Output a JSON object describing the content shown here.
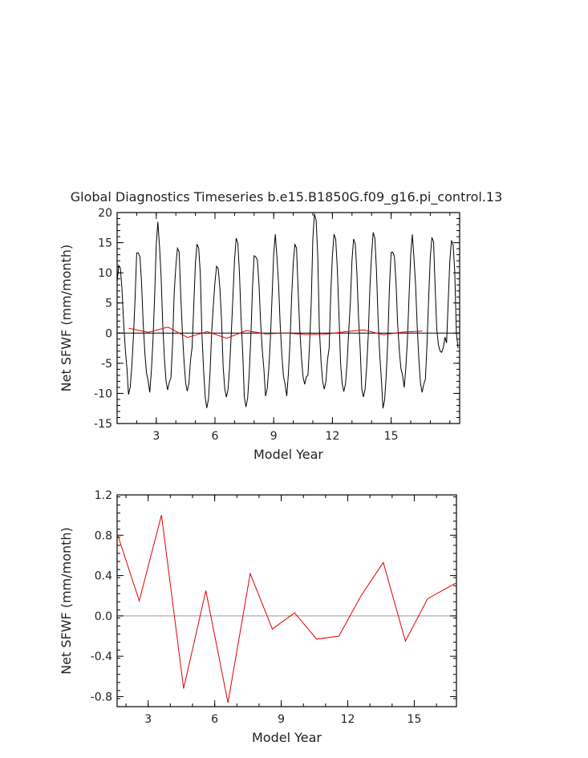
{
  "page_title": "Global Diagnostics Timeseries b.e15.B1850G.f09_g16.pi_control.13",
  "chart_data": [
    {
      "type": "line",
      "xlabel": "Model Year",
      "ylabel": "Net SFWF (mm/month)",
      "xlim": [
        1,
        18.5
      ],
      "ylim": [
        -15,
        20
      ],
      "xticks": [
        3,
        6,
        9,
        12,
        15
      ],
      "xtick_labels": [
        "3",
        "6",
        "9",
        "12",
        "15"
      ],
      "yticks": [
        -15,
        -10,
        -5,
        0,
        5,
        10,
        15,
        20
      ],
      "ytick_labels": [
        "-15",
        "-10",
        "-5",
        "0",
        "5",
        "10",
        "15",
        "20"
      ],
      "zero_line": true,
      "series": [
        {
          "color": "#000000",
          "peaks": [
            12.3,
            14.9,
            17.3,
            13.4,
            14.6,
            11.4,
            16.6,
            14.0,
            15.0,
            13.8,
            19.4,
            16.5,
            16.2,
            17.8,
            15.0,
            15.2
          ],
          "troughs": [
            -9.0,
            -9.4,
            -10.5,
            -10.2,
            -12.5,
            -10.2,
            -11.3,
            -9.0,
            -9.8,
            -9.3,
            -9.6,
            -9.5,
            -9.9,
            -11.3,
            -8.5,
            -10.9,
            -3.7
          ],
          "x_start": 1.0,
          "x_step": 0.083333,
          "values": []
        },
        {
          "color": "#e00000",
          "x": [
            1.6,
            2.6,
            3.6,
            4.6,
            5.6,
            6.6,
            7.6,
            8.6,
            9.6,
            10.6,
            11.6,
            12.6,
            13.6,
            14.6,
            15.6,
            16.6
          ],
          "values": [
            0.8,
            0.15,
            1.0,
            -0.72,
            0.25,
            -0.86,
            0.42,
            -0.13,
            0.03,
            -0.23,
            -0.2,
            0.2,
            0.53,
            -0.25,
            0.17,
            0.33
          ]
        }
      ]
    },
    {
      "type": "line",
      "xlabel": "Model Year",
      "ylabel": "Net SFWF (mm/month)",
      "xlim": [
        1.6,
        16.9
      ],
      "ylim": [
        -0.9,
        1.2
      ],
      "xticks": [
        3,
        6,
        9,
        12,
        15
      ],
      "xtick_labels": [
        "3",
        "6",
        "9",
        "12",
        "15"
      ],
      "yticks": [
        -0.8,
        -0.4,
        0.0,
        0.4,
        0.8,
        1.2
      ],
      "ytick_labels": [
        "-0.8",
        "-0.4",
        "0.0",
        "0.4",
        "0.8",
        "1.2"
      ],
      "zero_line": true,
      "series": [
        {
          "color": "#e00000",
          "x": [
            1.6,
            2.6,
            3.6,
            4.6,
            5.6,
            6.6,
            7.6,
            8.6,
            9.6,
            10.6,
            11.6,
            12.6,
            13.6,
            14.6,
            15.6,
            16.9
          ],
          "values": [
            0.82,
            0.15,
            1.0,
            -0.72,
            0.25,
            -0.86,
            0.42,
            -0.13,
            0.03,
            -0.23,
            -0.2,
            0.2,
            0.53,
            -0.25,
            0.17,
            0.33
          ]
        }
      ]
    }
  ]
}
